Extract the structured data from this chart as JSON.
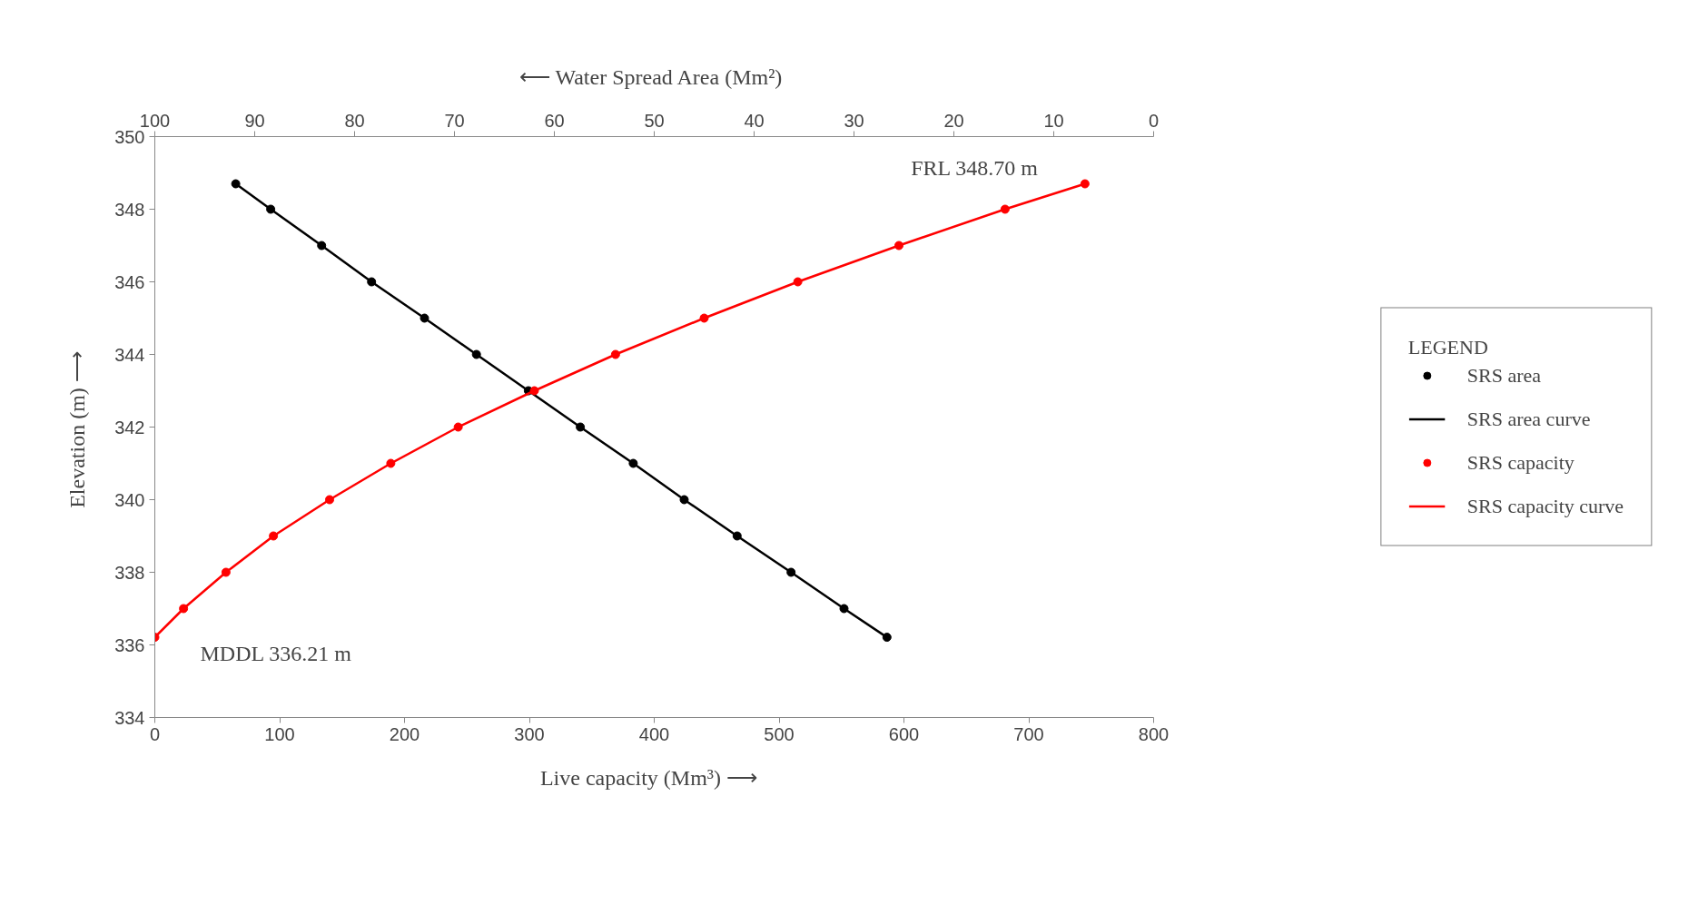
{
  "chart_data": {
    "type": "line",
    "xlabel": "Live capacity  (Mm³)  ⟶",
    "x2label": "⟵  Water Spread Area (Mm²)",
    "ylabel": "Elevation  (m) ⟶",
    "legend_title": "LEGEND",
    "xlim": [
      0,
      800
    ],
    "xticks": [
      0,
      100,
      200,
      300,
      400,
      500,
      600,
      700,
      800
    ],
    "x2lim": [
      100,
      0
    ],
    "x2ticks": [
      100,
      90,
      80,
      70,
      60,
      50,
      40,
      30,
      20,
      10,
      0
    ],
    "ylim": [
      334,
      350
    ],
    "yticks": [
      334,
      336,
      338,
      340,
      342,
      344,
      346,
      348,
      350
    ],
    "grid": false,
    "legend": "right",
    "line_style": "solid",
    "series": [
      {
        "name": "SRS area",
        "type": "scatter",
        "marker": "circle",
        "axis": "x2",
        "color": "#000000",
        "x": [
          91.9,
          88.4,
          83.3,
          78.3,
          73.0,
          67.8,
          62.6,
          57.4,
          52.1,
          47.0,
          41.7,
          36.3,
          31.0,
          26.7
        ],
        "values": [
          348.7,
          348,
          347,
          346,
          345,
          344,
          343,
          342,
          341,
          340,
          339,
          338,
          337,
          336.21
        ]
      },
      {
        "name": "SRS area curve",
        "marker": "none",
        "axis": "x2",
        "color": "#000000",
        "x": [
          91.9,
          88.4,
          83.3,
          78.3,
          73.0,
          67.8,
          62.6,
          57.4,
          52.1,
          47.0,
          41.7,
          36.3,
          31.0,
          26.7
        ],
        "values": [
          348.7,
          348,
          347,
          346,
          345,
          344,
          343,
          342,
          341,
          340,
          339,
          338,
          337,
          336.21
        ]
      },
      {
        "name": "SRS capacity",
        "type": "scatter",
        "marker": "circle",
        "color": "#ff0000",
        "x": [
          0,
          23,
          57,
          95,
          140,
          189,
          243,
          304,
          369,
          440,
          515,
          596,
          681,
          745
        ],
        "values": [
          336.21,
          337,
          338,
          339,
          340,
          341,
          342,
          343,
          344,
          345,
          346,
          347,
          348,
          348.7
        ]
      },
      {
        "name": "SRS capacity curve",
        "marker": "none",
        "color": "#ff0000",
        "x": [
          0,
          23,
          57,
          95,
          140,
          189,
          243,
          304,
          369,
          440,
          515,
          596,
          681,
          745
        ],
        "values": [
          336.21,
          337,
          338,
          339,
          340,
          341,
          342,
          343,
          344,
          345,
          346,
          347,
          348,
          348.7
        ]
      }
    ],
    "annotations": [
      {
        "text": "FRL  348.70 m",
        "x": 745,
        "y": 348.7
      },
      {
        "text": "MDDL  336.21 m",
        "x": 0,
        "y": 336.21
      }
    ]
  }
}
